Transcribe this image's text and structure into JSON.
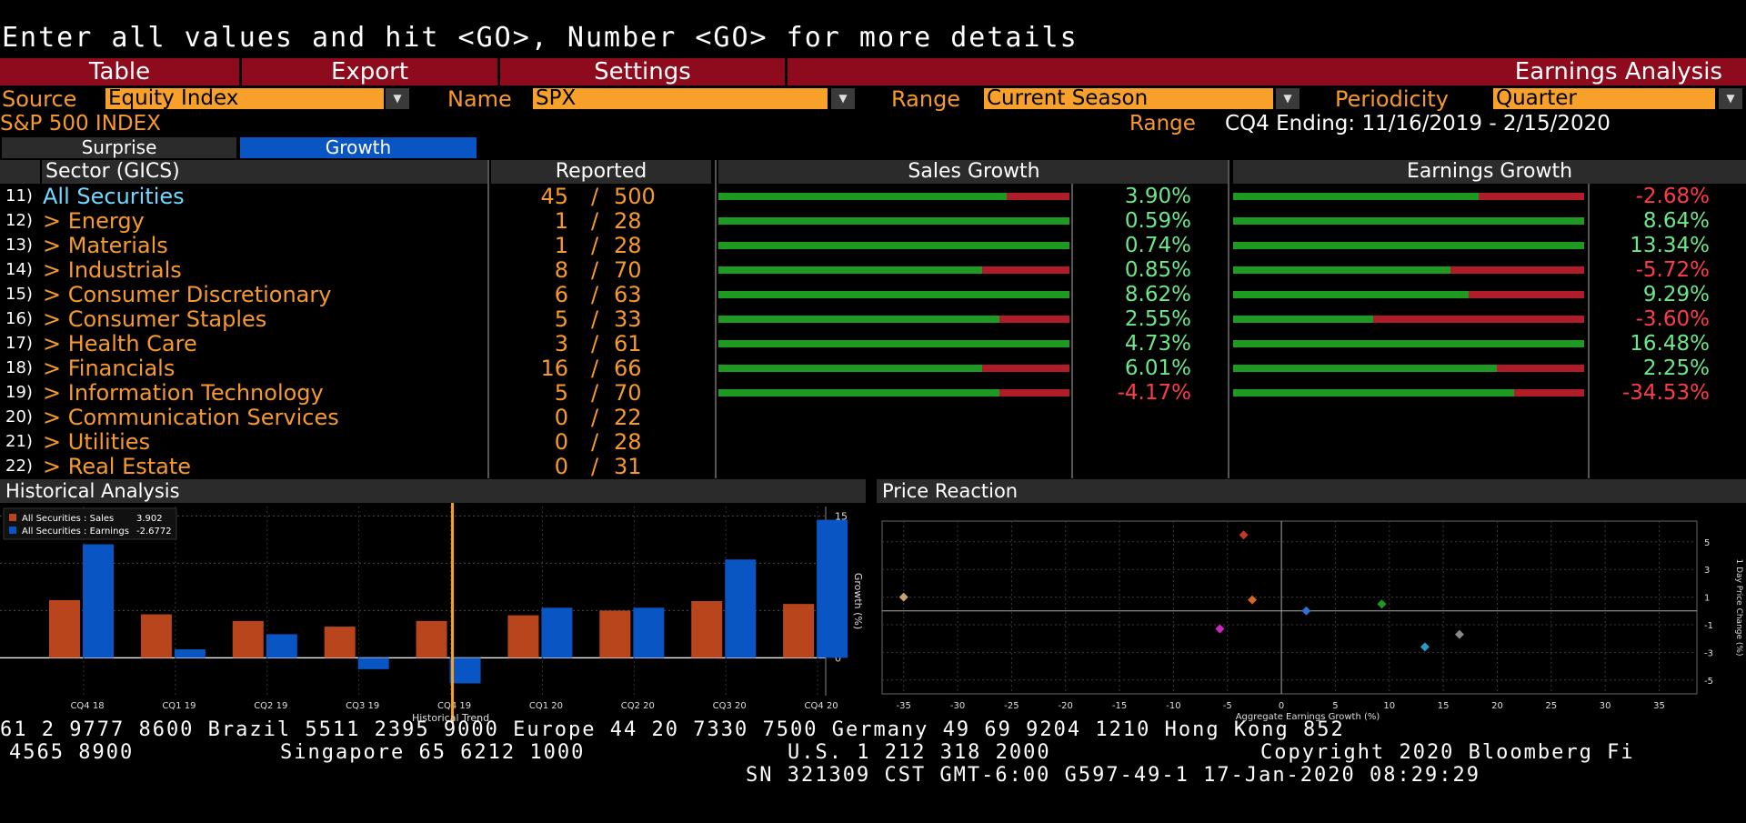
{
  "command_line": "Enter all values and hit <GO>, Number <GO> for more details",
  "menu": {
    "table": "Table",
    "export": "Export",
    "settings": "Settings",
    "title": "Earnings Analysis"
  },
  "fields": {
    "source_label": "Source",
    "source_value": "Equity Index",
    "name_label": "Name",
    "name_value": "SPX",
    "range_label": "Range",
    "range_value": "Current Season",
    "periodicity_label": "Periodicity",
    "periodicity_value": "Quarter"
  },
  "index_name": "S&P 500 INDEX",
  "range_info_label": "Range",
  "range_info_value": "CQ4 Ending: 11/16/2019 - 2/15/2020",
  "tabs": {
    "surprise": "Surprise",
    "growth": "Growth"
  },
  "table_headers": {
    "sector": "Sector (GICS)",
    "reported": "Reported",
    "sales": "Sales Growth",
    "earnings": "Earnings Growth"
  },
  "colors": {
    "accent": "#f79a2b",
    "menu_red": "#8e0b1d",
    "tab_blue": "#0a55c4",
    "positive": "#6be88a",
    "negative": "#ff3b47",
    "bar_green": "#1e9a22",
    "bar_red": "#b01d2a",
    "sales_bar": "#b9451d",
    "earnings_bar": "#0a55c4"
  },
  "rows": [
    {
      "num": "11)",
      "name": "All Securities",
      "reported": "45",
      "total": "500",
      "sales": "3.90%",
      "sales_pos": true,
      "sales_green": 0.82,
      "earn": "-2.68%",
      "earn_pos": false,
      "earn_green": 0.7
    },
    {
      "num": "12)",
      "name": "> Energy",
      "reported": "1",
      "total": "28",
      "sales": "0.59%",
      "sales_pos": true,
      "sales_green": 1.0,
      "earn": "8.64%",
      "earn_pos": true,
      "earn_green": 1.0
    },
    {
      "num": "13)",
      "name": "> Materials",
      "reported": "1",
      "total": "28",
      "sales": "0.74%",
      "sales_pos": true,
      "sales_green": 1.0,
      "earn": "13.34%",
      "earn_pos": true,
      "earn_green": 1.0
    },
    {
      "num": "14)",
      "name": "> Industrials",
      "reported": "8",
      "total": "70",
      "sales": "0.85%",
      "sales_pos": true,
      "sales_green": 0.75,
      "earn": "-5.72%",
      "earn_pos": false,
      "earn_green": 0.62
    },
    {
      "num": "15)",
      "name": "> Consumer Discretionary",
      "reported": "6",
      "total": "63",
      "sales": "8.62%",
      "sales_pos": true,
      "sales_green": 1.0,
      "earn": "9.29%",
      "earn_pos": true,
      "earn_green": 0.67
    },
    {
      "num": "16)",
      "name": "> Consumer Staples",
      "reported": "5",
      "total": "33",
      "sales": "2.55%",
      "sales_pos": true,
      "sales_green": 0.8,
      "earn": "-3.60%",
      "earn_pos": false,
      "earn_green": 0.4
    },
    {
      "num": "17)",
      "name": "> Health Care",
      "reported": "3",
      "total": "61",
      "sales": "4.73%",
      "sales_pos": true,
      "sales_green": 1.0,
      "earn": "16.48%",
      "earn_pos": true,
      "earn_green": 1.0
    },
    {
      "num": "18)",
      "name": "> Financials",
      "reported": "16",
      "total": "66",
      "sales": "6.01%",
      "sales_pos": true,
      "sales_green": 0.75,
      "earn": "2.25%",
      "earn_pos": true,
      "earn_green": 0.75
    },
    {
      "num": "19)",
      "name": "> Information Technology",
      "reported": "5",
      "total": "70",
      "sales": "-4.17%",
      "sales_pos": false,
      "sales_green": 0.8,
      "earn": "-34.53%",
      "earn_pos": false,
      "earn_green": 0.8
    },
    {
      "num": "20)",
      "name": "> Communication Services",
      "reported": "0",
      "total": "22"
    },
    {
      "num": "21)",
      "name": "> Utilities",
      "reported": "0",
      "total": "28"
    },
    {
      "num": "22)",
      "name": "> Real Estate",
      "reported": "0",
      "total": "31"
    }
  ],
  "historical": {
    "title": "Historical Analysis",
    "legend_sales": "All Securities : Sales",
    "legend_sales_val": "3.902",
    "legend_earn": "All Securities : Earnings",
    "legend_earn_val": "-2.6772",
    "xlabel": "Historical Trend",
    "ylabel": "Growth (%)",
    "marker": "CQ4 19"
  },
  "price_reaction": {
    "title": "Price Reaction",
    "xlabel": "Aggregate Earnings Growth (%)",
    "ylabel": "1 Day Price Change (%)"
  },
  "chart_data": [
    {
      "type": "bar",
      "categories": [
        "CQ4 18",
        "CQ1 19",
        "CQ2 19",
        "CQ3 19",
        "CQ4 19",
        "CQ1 20",
        "CQ2 20",
        "CQ3 20",
        "CQ4 20"
      ],
      "series": [
        {
          "name": "All Securities : Sales",
          "values": [
            6.1,
            4.6,
            3.9,
            3.3,
            3.9,
            4.5,
            5.0,
            6.0,
            5.7
          ]
        },
        {
          "name": "All Securities : Earnings",
          "values": [
            12.0,
            0.9,
            2.5,
            -1.2,
            -2.7,
            5.3,
            5.3,
            10.4,
            14.6
          ]
        }
      ],
      "yticks": [
        0,
        5,
        10,
        15
      ],
      "ylim": [
        -4,
        16
      ],
      "xlabel": "Historical Trend",
      "ylabel": "Growth (%)",
      "grid": true
    },
    {
      "type": "scatter",
      "points": [
        {
          "x": -35.0,
          "y": 1.0,
          "color": "#c8a26a"
        },
        {
          "x": -3.5,
          "y": 5.5,
          "color": "#c0392b"
        },
        {
          "x": -2.7,
          "y": 0.8,
          "color": "#d2691e"
        },
        {
          "x": -5.7,
          "y": -1.3,
          "color": "#d024c8"
        },
        {
          "x": 2.3,
          "y": 0.0,
          "color": "#2f6fd6"
        },
        {
          "x": 9.3,
          "y": 0.5,
          "color": "#1e9a22"
        },
        {
          "x": 13.3,
          "y": -2.6,
          "color": "#2a9bc8"
        },
        {
          "x": 16.5,
          "y": -1.7,
          "color": "#888888"
        }
      ],
      "xticks": [
        -35,
        -30,
        -25,
        -20,
        -15,
        -10,
        -5,
        0,
        5,
        10,
        15,
        20,
        25,
        30,
        35
      ],
      "yticks": [
        -5,
        -3,
        -1,
        1,
        3,
        5
      ],
      "xlim": [
        -37,
        38.5
      ],
      "ylim": [
        -6,
        6.5
      ],
      "xlabel": "Aggregate Earnings Growth (%)",
      "ylabel": "1 Day Price Change (%)",
      "grid": true
    }
  ],
  "footer": {
    "line1": "61 2 9777 8600 Brazil 5511 2395 9000 Europe 44 20 7330 7500 Germany 49 69 9204 1210 Hong Kong 852",
    "line2a": "4565 8900",
    "line2b": "Singapore 65 6212 1000",
    "line2c": "U.S. 1 212 318 2000",
    "line2d": "Copyright 2020 Bloomberg Fi",
    "line3": "SN 321309 CST  GMT-6:00 G597-49-1 17-Jan-2020 08:29:29"
  }
}
